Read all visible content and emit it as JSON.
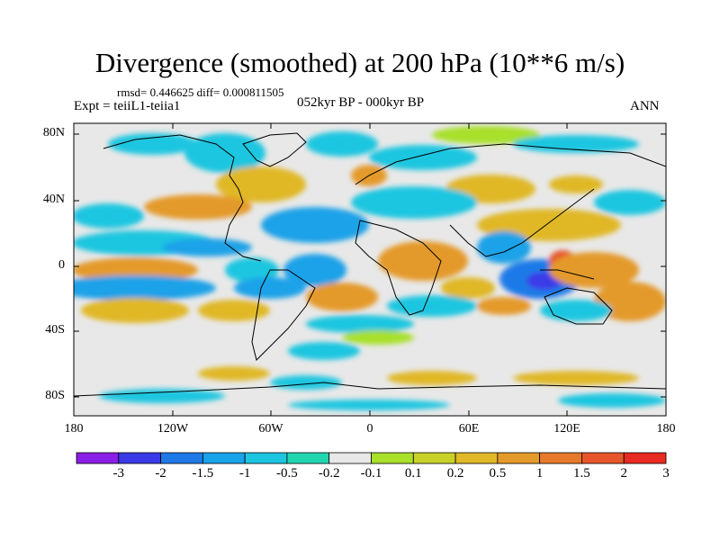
{
  "title": "Divergence (smoothed) at 200 hPa (10**6 m/s)",
  "stats": "rmsd= 0.446625 diff= 0.000811505",
  "experiment": "Expt = teiiL1-teiia1",
  "period": "052kyr BP - 000kyr BP",
  "season": "ANN",
  "lat_labels": [
    "80N",
    "40N",
    "0",
    "40S",
    "80S"
  ],
  "lon_labels": [
    "180",
    "120W",
    "60W",
    "0",
    "60E",
    "120E",
    "180"
  ],
  "colorbar": {
    "labels": [
      "-3",
      "-2",
      "-1.5",
      "-1",
      "-0.5",
      "-0.2",
      "-0.1",
      "0.1",
      "0.2",
      "0.5",
      "1",
      "1.5",
      "2",
      "3"
    ],
    "colors": [
      "#8a1ee6",
      "#3a3ae8",
      "#1f7ae8",
      "#1aa2e8",
      "#1cc6e0",
      "#22d6b0",
      "#e8e8e8",
      "#a8e02a",
      "#c8d22a",
      "#e0b828",
      "#e49a2a",
      "#e67a2a",
      "#e6562a",
      "#e82a22"
    ]
  }
}
